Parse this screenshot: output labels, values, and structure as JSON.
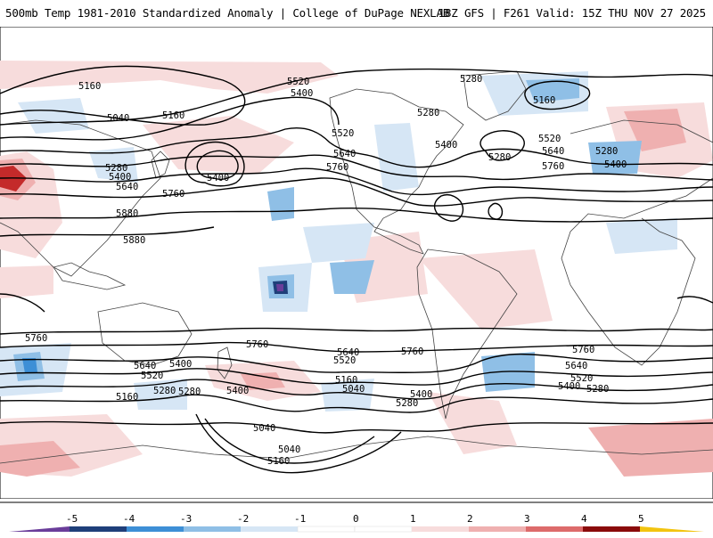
{
  "header": {
    "title": "500mb Temp 1981-2010 Standardized Anomaly | College of DuPage NEXLAB",
    "run_info": "18Z GFS | F261 Valid: 15Z THU NOV 27 2025"
  },
  "colors": {
    "neg5": "#6a3d9a",
    "neg4": "#1f3f7a",
    "neg3": "#3d8fd6",
    "neg2": "#8fbfe6",
    "neg1": "#d6e6f5",
    "zero": "#ffffff",
    "pos1": "#f7dcdc",
    "pos2": "#efb0b0",
    "pos3": "#dd6b6b",
    "pos4": "#c42a2a",
    "pos5": "#8a0b0b",
    "pos6": "#f2c40f",
    "contour": "#000000",
    "border": "#444444"
  },
  "colorbar": {
    "ticks": [
      "-5",
      "-4",
      "-3",
      "-2",
      "-1",
      "0",
      "1",
      "2",
      "3",
      "4",
      "5"
    ]
  },
  "contours": {
    "labels": [
      "5160",
      "5040",
      "5160",
      "5520",
      "5400",
      "5280",
      "5160",
      "5280",
      "5400",
      "5280",
      "5520",
      "5640",
      "5760",
      "5400",
      "5280",
      "5520",
      "5640",
      "5760",
      "5280",
      "5400",
      "5640",
      "5760",
      "5880",
      "5880",
      "5400",
      "5760",
      "5760",
      "5640",
      "5400",
      "5520",
      "5280",
      "5160",
      "5760",
      "5640",
      "5520",
      "5400",
      "5280",
      "5160",
      "5040",
      "5400",
      "5280",
      "5040",
      "5160",
      "5760",
      "5640",
      "5520",
      "5400",
      "5280",
      "5040"
    ]
  }
}
